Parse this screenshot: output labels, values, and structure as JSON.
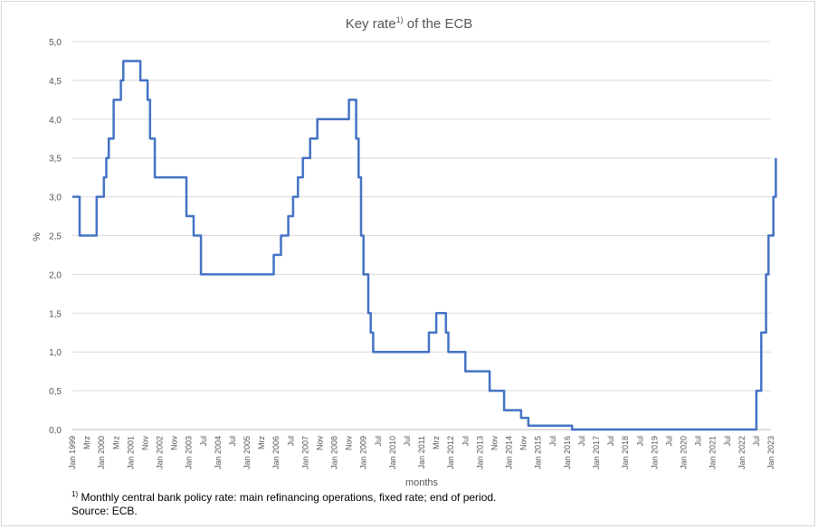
{
  "chart_data": {
    "type": "line",
    "title": {
      "main": "Key rate",
      "sup": "1)",
      "suffix": " of the ECB"
    },
    "xlabel": "months",
    "ylabel": "%",
    "ylim": [
      0,
      5
    ],
    "y_ticks": [
      "0,0",
      "0,5",
      "1,0",
      "1,5",
      "2,0",
      "2,5",
      "3,0",
      "3,5",
      "4,0",
      "4,5",
      "5,0"
    ],
    "x_start": "Jan 1999",
    "x_end": "Jan 2023",
    "x_tick_labels": [
      "Jan 1999",
      "Mrz",
      "Jan 2000",
      "Mrz",
      "Jan 2001",
      "Nov",
      "Jan 2002",
      "Nov",
      "Jan 2003",
      "Jul",
      "Jan 2004",
      "Jul",
      "Jan 2005",
      "Mrz",
      "Jan 2006",
      "Jul",
      "Jan 2007",
      "Nov",
      "Jan 2008",
      "Nov",
      "Jan 2009",
      "Jul",
      "Jan 2010",
      "Jul",
      "Jan 2011",
      "Mrz",
      "Jan 2012",
      "Jul",
      "Jan 2013",
      "Nov",
      "Jan 2014",
      "Nov",
      "Jan 2015",
      "Jul",
      "Jan 2016",
      "Jul",
      "Jan 2017",
      "Jul",
      "Jan 2018",
      "Jul",
      "Jan 2019",
      "Jul",
      "Jan 2020",
      "Jul",
      "Jan 2021",
      "Jul",
      "Jan 2022",
      "Jul",
      "Jan 2023"
    ],
    "grid": true,
    "legend": "none",
    "series_color": "#4472c4",
    "series": [
      {
        "points": [
          [
            "1999-01",
            3.0
          ],
          [
            "1999-02",
            3.0
          ],
          [
            "1999-03",
            3.0
          ],
          [
            "1999-04",
            2.5
          ],
          [
            "1999-11",
            3.0
          ],
          [
            "2000-02",
            3.25
          ],
          [
            "2000-03",
            3.5
          ],
          [
            "2000-04",
            3.75
          ],
          [
            "2000-06",
            4.25
          ],
          [
            "2000-09",
            4.5
          ],
          [
            "2000-10",
            4.75
          ],
          [
            "2001-05",
            4.5
          ],
          [
            "2001-08",
            4.25
          ],
          [
            "2001-09",
            3.75
          ],
          [
            "2001-11",
            3.25
          ],
          [
            "2002-12",
            2.75
          ],
          [
            "2003-03",
            2.5
          ],
          [
            "2003-06",
            2.0
          ],
          [
            "2005-12",
            2.25
          ],
          [
            "2006-03",
            2.5
          ],
          [
            "2006-06",
            2.75
          ],
          [
            "2006-08",
            3.0
          ],
          [
            "2006-10",
            3.25
          ],
          [
            "2006-12",
            3.5
          ],
          [
            "2007-03",
            3.75
          ],
          [
            "2007-06",
            4.0
          ],
          [
            "2008-07",
            4.25
          ],
          [
            "2008-10",
            3.75
          ],
          [
            "2008-11",
            3.25
          ],
          [
            "2008-12",
            2.5
          ],
          [
            "2009-01",
            2.0
          ],
          [
            "2009-03",
            1.5
          ],
          [
            "2009-04",
            1.25
          ],
          [
            "2009-05",
            1.0
          ],
          [
            "2011-04",
            1.25
          ],
          [
            "2011-07",
            1.5
          ],
          [
            "2011-11",
            1.25
          ],
          [
            "2011-12",
            1.0
          ],
          [
            "2012-07",
            0.75
          ],
          [
            "2013-05",
            0.5
          ],
          [
            "2013-11",
            0.25
          ],
          [
            "2014-06",
            0.15
          ],
          [
            "2014-09",
            0.05
          ],
          [
            "2016-03",
            0.0
          ],
          [
            "2022-07",
            0.5
          ],
          [
            "2022-09",
            1.25
          ],
          [
            "2022-11",
            2.0
          ],
          [
            "2022-12",
            2.5
          ],
          [
            "2023-02",
            3.0
          ],
          [
            "2023-03",
            3.5
          ]
        ]
      }
    ]
  },
  "footnotes": {
    "note_sup": "1)",
    "note_text": " Monthly central bank policy rate: main refinancing operations, fixed rate; end of period.",
    "source": "Source: ECB."
  }
}
